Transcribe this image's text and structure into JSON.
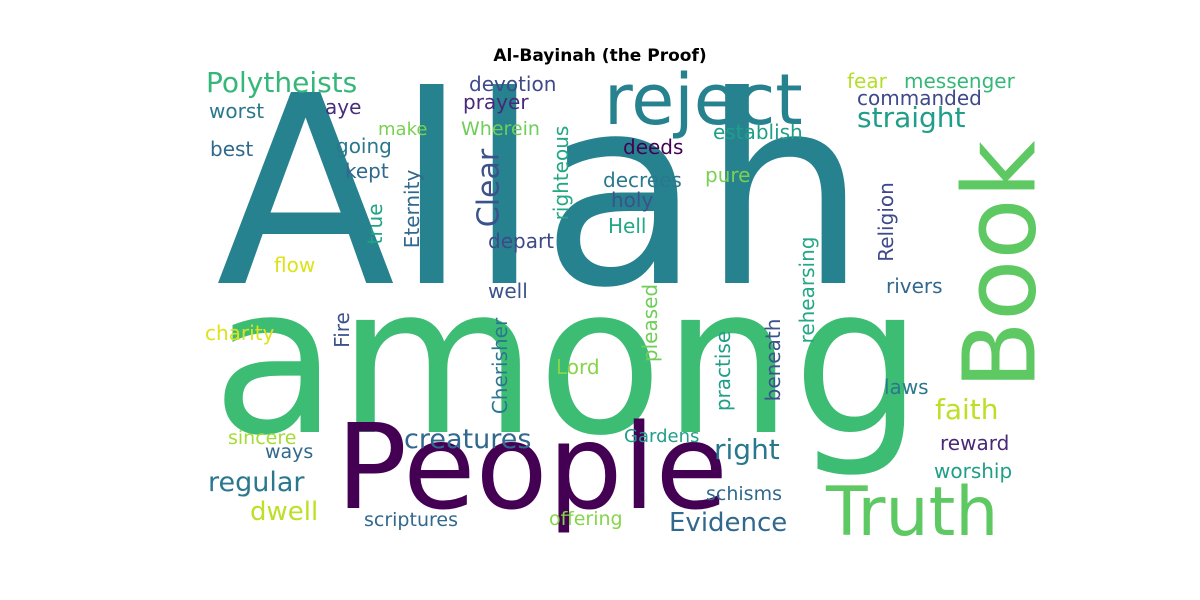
{
  "chart_data": {
    "type": "wordcloud",
    "title": "Al-Bayinah (the Proof)",
    "words": [
      {
        "text": "Allah",
        "color": "#26828e"
      },
      {
        "text": "among",
        "color": "#3dbc74"
      },
      {
        "text": "People",
        "color": "#440154"
      },
      {
        "text": "Book",
        "color": "#5ec962"
      },
      {
        "text": "reject",
        "color": "#26828e"
      },
      {
        "text": "Truth",
        "color": "#5ec962"
      },
      {
        "text": "Polytheists",
        "color": "#35b779"
      },
      {
        "text": "straight",
        "color": "#1f9e89"
      },
      {
        "text": "Clear",
        "color": "#3b528b"
      },
      {
        "text": "creatures",
        "color": "#31688e"
      },
      {
        "text": "Evidence",
        "color": "#31688e"
      },
      {
        "text": "right",
        "color": "#2a788e"
      },
      {
        "text": "faith",
        "color": "#bddf26"
      },
      {
        "text": "regular",
        "color": "#2a788e"
      },
      {
        "text": "dwell",
        "color": "#bddf26"
      },
      {
        "text": "devotion",
        "color": "#3e4989"
      },
      {
        "text": "prayer",
        "color": "#482878"
      },
      {
        "text": "fear",
        "color": "#b5de2b"
      },
      {
        "text": "messenger",
        "color": "#35b779"
      },
      {
        "text": "commanded",
        "color": "#3e4989"
      },
      {
        "text": "worst",
        "color": "#2a788e"
      },
      {
        "text": "aye",
        "color": "#472d7b"
      },
      {
        "text": "make",
        "color": "#7ad151"
      },
      {
        "text": "Wherein",
        "color": "#6ece58"
      },
      {
        "text": "righteous",
        "color": "#22a884"
      },
      {
        "text": "establish",
        "color": "#1f9e89"
      },
      {
        "text": "best",
        "color": "#31688e"
      },
      {
        "text": "going",
        "color": "#2a788e"
      },
      {
        "text": "deeds",
        "color": "#440154"
      },
      {
        "text": "kept",
        "color": "#31688e"
      },
      {
        "text": "decrees",
        "color": "#2a788e"
      },
      {
        "text": "pure",
        "color": "#7ad151"
      },
      {
        "text": "holy",
        "color": "#3b528b"
      },
      {
        "text": "Eternity",
        "color": "#31688e"
      },
      {
        "text": "true",
        "color": "#20a486"
      },
      {
        "text": "Hell",
        "color": "#22a884"
      },
      {
        "text": "depart",
        "color": "#3e4989"
      },
      {
        "text": "rehearsing",
        "color": "#22a884"
      },
      {
        "text": "Religion",
        "color": "#3e4989"
      },
      {
        "text": "flow",
        "color": "#dde318"
      },
      {
        "text": "well",
        "color": "#3b528b"
      },
      {
        "text": "rivers",
        "color": "#31688e"
      },
      {
        "text": "pleased",
        "color": "#6ece58"
      },
      {
        "text": "Fire",
        "color": "#3b528b"
      },
      {
        "text": "charity",
        "color": "#dde318"
      },
      {
        "text": "Cherisher",
        "color": "#2a788e"
      },
      {
        "text": "Lord",
        "color": "#86d549"
      },
      {
        "text": "practise",
        "color": "#1f9e89"
      },
      {
        "text": "beneath",
        "color": "#3b528b"
      },
      {
        "text": "laws",
        "color": "#2a788e"
      },
      {
        "text": "sincere",
        "color": "#a5db36"
      },
      {
        "text": "ways",
        "color": "#31688e"
      },
      {
        "text": "Gardens",
        "color": "#1f9e89"
      },
      {
        "text": "reward",
        "color": "#482878"
      },
      {
        "text": "worship",
        "color": "#1f9e89"
      },
      {
        "text": "schisms",
        "color": "#31688e"
      },
      {
        "text": "scriptures",
        "color": "#31688e"
      },
      {
        "text": "offering",
        "color": "#86d549"
      }
    ]
  }
}
